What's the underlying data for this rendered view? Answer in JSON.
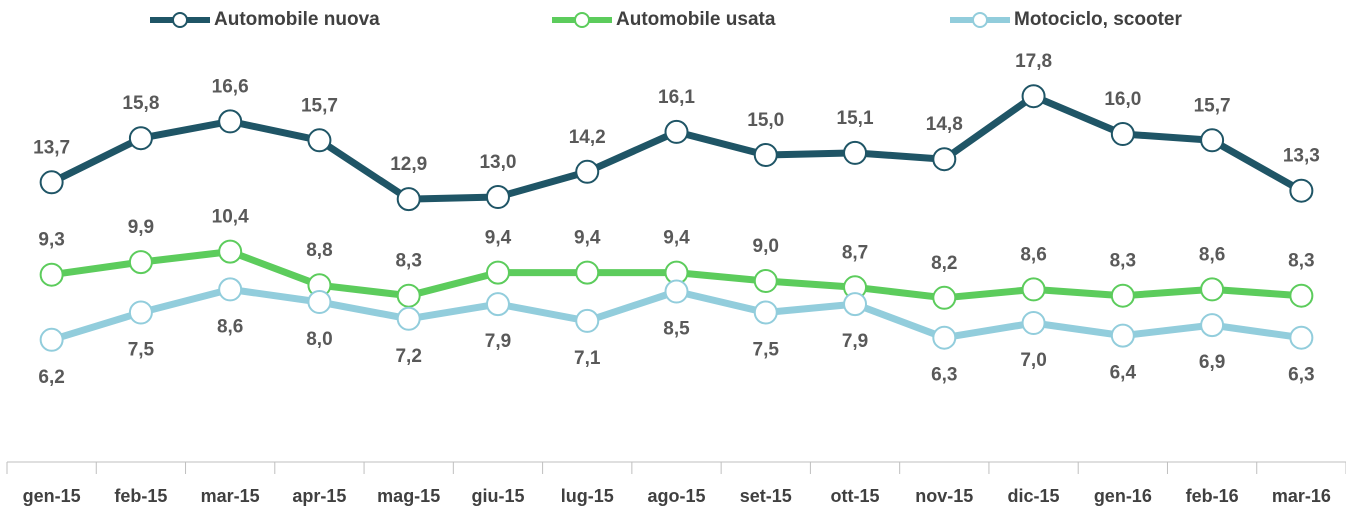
{
  "chart_data": {
    "type": "line",
    "categories": [
      "gen-15",
      "feb-15",
      "mar-15",
      "apr-15",
      "mag-15",
      "giu-15",
      "lug-15",
      "ago-15",
      "set-15",
      "ott-15",
      "nov-15",
      "dic-15",
      "gen-16",
      "feb-16",
      "mar-16"
    ],
    "series": [
      {
        "name": "Automobile nuova",
        "color": "#1f5566",
        "values": [
          13.7,
          15.8,
          16.6,
          15.7,
          12.9,
          13.0,
          14.2,
          16.1,
          15.0,
          15.1,
          14.8,
          17.8,
          16.0,
          15.7,
          13.3
        ],
        "value_labels": [
          "13,7",
          "15,8",
          "16,6",
          "15,7",
          "12,9",
          "13,0",
          "14,2",
          "16,1",
          "15,0",
          "15,1",
          "14,8",
          "17,8",
          "16,0",
          "15,7",
          "13,3"
        ]
      },
      {
        "name": "Automobile usata",
        "color": "#5ccc5c",
        "values": [
          9.3,
          9.9,
          10.4,
          8.8,
          8.3,
          9.4,
          9.4,
          9.4,
          9.0,
          8.7,
          8.2,
          8.6,
          8.3,
          8.6,
          8.3
        ],
        "value_labels": [
          "9,3",
          "9,9",
          "10,4",
          "8,8",
          "8,3",
          "9,4",
          "9,4",
          "9,4",
          "9,0",
          "8,7",
          "8,2",
          "8,6",
          "8,3",
          "8,6",
          "8,3"
        ]
      },
      {
        "name": "Motociclo, scooter",
        "color": "#92cddc",
        "values": [
          6.2,
          7.5,
          8.6,
          8.0,
          7.2,
          7.9,
          7.1,
          8.5,
          7.5,
          7.9,
          6.3,
          7.0,
          6.4,
          6.9,
          6.3
        ],
        "value_labels": [
          "6,2",
          "7,5",
          "8,6",
          "8,0",
          "7,2",
          "7,9",
          "7,1",
          "8,5",
          "7,5",
          "7,9",
          "6,3",
          "7,0",
          "6,4",
          "6,9",
          "6,3"
        ]
      }
    ],
    "ylim": [
      0,
      20
    ],
    "legend": "top"
  }
}
